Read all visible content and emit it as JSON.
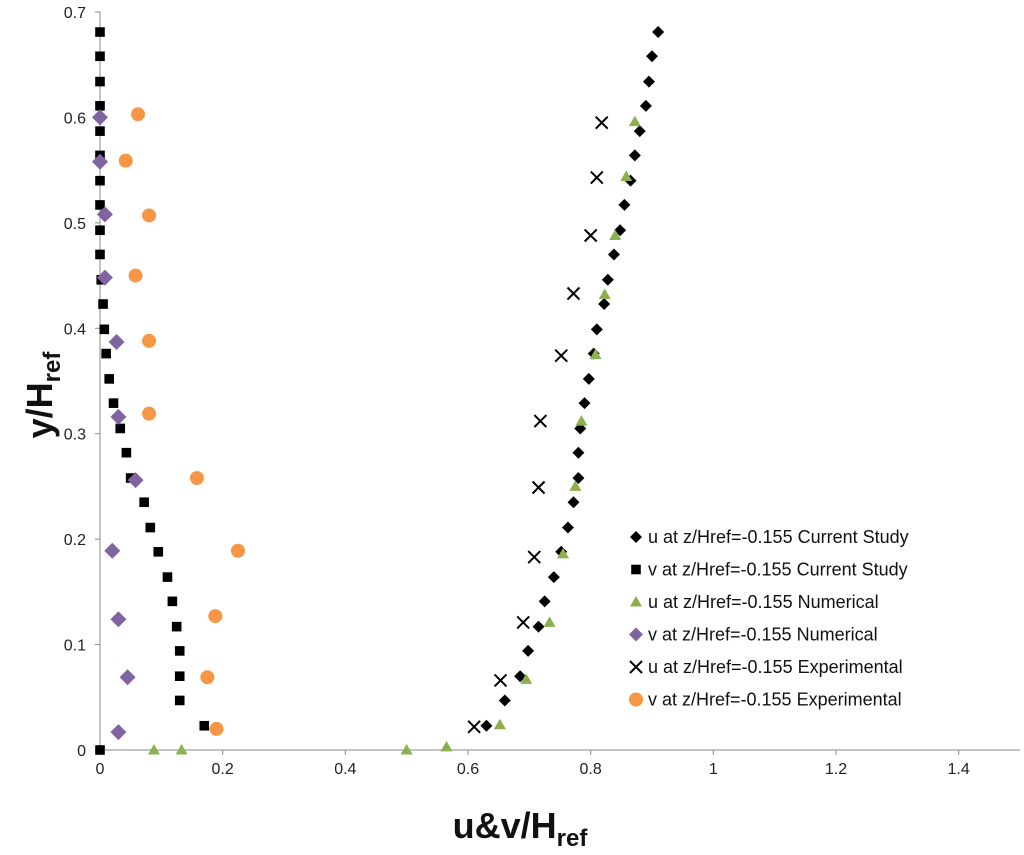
{
  "chart_data": {
    "type": "scatter",
    "title": "",
    "xlabel_main": "u&v/H",
    "xlabel_sub": "ref",
    "ylabel_main": "y/H",
    "ylabel_sub": "ref",
    "xlim": [
      0,
      1.5
    ],
    "ylim": [
      0,
      0.7
    ],
    "x_ticks": [
      0,
      0.2,
      0.4,
      0.6,
      0.8,
      1,
      1.2,
      1.4
    ],
    "x_tick_labels": [
      "0",
      "0.2",
      "0.4",
      "0.6",
      "0.8",
      "1",
      "1.2",
      "1.4"
    ],
    "y_ticks": [
      0,
      0.1,
      0.2,
      0.3,
      0.4,
      0.5,
      0.6,
      0.7
    ],
    "y_tick_labels": [
      "0",
      "0.1",
      "0.2",
      "0.3",
      "0.4",
      "0.5",
      "0.6",
      "0.7"
    ],
    "grid": false,
    "legend_position": "bottom-right",
    "series": [
      {
        "name": "u at z/Href=-0.155 Current Study",
        "marker": "diamond",
        "color": "#000000",
        "points": [
          [
            0.63,
            0.023
          ],
          [
            0.66,
            0.047
          ],
          [
            0.685,
            0.07
          ],
          [
            0.698,
            0.094
          ],
          [
            0.715,
            0.117
          ],
          [
            0.725,
            0.141
          ],
          [
            0.74,
            0.164
          ],
          [
            0.752,
            0.188
          ],
          [
            0.763,
            0.211
          ],
          [
            0.772,
            0.235
          ],
          [
            0.78,
            0.258
          ],
          [
            0.78,
            0.282
          ],
          [
            0.783,
            0.305
          ],
          [
            0.79,
            0.329
          ],
          [
            0.797,
            0.352
          ],
          [
            0.805,
            0.376
          ],
          [
            0.81,
            0.399
          ],
          [
            0.822,
            0.423
          ],
          [
            0.828,
            0.446
          ],
          [
            0.838,
            0.47
          ],
          [
            0.848,
            0.493
          ],
          [
            0.855,
            0.517
          ],
          [
            0.865,
            0.54
          ],
          [
            0.872,
            0.564
          ],
          [
            0.88,
            0.587
          ],
          [
            0.89,
            0.611
          ],
          [
            0.895,
            0.634
          ],
          [
            0.9,
            0.658
          ],
          [
            0.91,
            0.681
          ]
        ]
      },
      {
        "name": "v at z/Href=-0.155 Current Study",
        "marker": "square",
        "color": "#000000",
        "points": [
          [
            0,
            0
          ],
          [
            0.17,
            0.023
          ],
          [
            0.13,
            0.047
          ],
          [
            0.13,
            0.07
          ],
          [
            0.13,
            0.094
          ],
          [
            0.125,
            0.117
          ],
          [
            0.118,
            0.141
          ],
          [
            0.11,
            0.164
          ],
          [
            0.095,
            0.188
          ],
          [
            0.082,
            0.211
          ],
          [
            0.072,
            0.235
          ],
          [
            0.05,
            0.258
          ],
          [
            0.043,
            0.282
          ],
          [
            0.033,
            0.305
          ],
          [
            0.022,
            0.329
          ],
          [
            0.015,
            0.352
          ],
          [
            0.01,
            0.376
          ],
          [
            0.007,
            0.399
          ],
          [
            0.005,
            0.423
          ],
          [
            0.002,
            0.446
          ],
          [
            0,
            0.47
          ],
          [
            0,
            0.493
          ],
          [
            0,
            0.517
          ],
          [
            0,
            0.54
          ],
          [
            0,
            0.564
          ],
          [
            0,
            0.587
          ],
          [
            0,
            0.611
          ],
          [
            0,
            0.634
          ],
          [
            0,
            0.658
          ],
          [
            0,
            0.681
          ]
        ]
      },
      {
        "name": "u at z/Href=-0.155 Numerical",
        "marker": "triangle",
        "color": "#8db04e",
        "points": [
          [
            0.088,
            0
          ],
          [
            0.133,
            0
          ],
          [
            0.5,
            0
          ],
          [
            0.565,
            0.003
          ],
          [
            0.652,
            0.024
          ],
          [
            0.695,
            0.067
          ],
          [
            0.733,
            0.121
          ],
          [
            0.755,
            0.186
          ],
          [
            0.775,
            0.25
          ],
          [
            0.785,
            0.312
          ],
          [
            0.808,
            0.375
          ],
          [
            0.823,
            0.432
          ],
          [
            0.84,
            0.488
          ],
          [
            0.858,
            0.544
          ],
          [
            0.872,
            0.596
          ]
        ]
      },
      {
        "name": "v at z/Href=-0.155 Numerical",
        "marker": "diamond",
        "color": "#8064a2",
        "points": [
          [
            0.03,
            0.017
          ],
          [
            0.045,
            0.069
          ],
          [
            0.03,
            0.124
          ],
          [
            0.02,
            0.189
          ],
          [
            0.058,
            0.256
          ],
          [
            0.03,
            0.316
          ],
          [
            0.027,
            0.387
          ],
          [
            0.008,
            0.448
          ],
          [
            0.008,
            0.508
          ],
          [
            0,
            0.558
          ],
          [
            0,
            0.6
          ]
        ]
      },
      {
        "name": "u at z/Href=-0.155 Experimental",
        "marker": "x",
        "color": "#000000",
        "points": [
          [
            0.61,
            0.022
          ],
          [
            0.653,
            0.066
          ],
          [
            0.69,
            0.121
          ],
          [
            0.708,
            0.183
          ],
          [
            0.715,
            0.249
          ],
          [
            0.718,
            0.312
          ],
          [
            0.752,
            0.374
          ],
          [
            0.772,
            0.433
          ],
          [
            0.8,
            0.488
          ],
          [
            0.81,
            0.543
          ],
          [
            0.818,
            0.595
          ]
        ]
      },
      {
        "name": "v at z/Href=-0.155 Experimental",
        "marker": "circle",
        "color": "#f79646",
        "points": [
          [
            0.19,
            0.02
          ],
          [
            0.175,
            0.069
          ],
          [
            0.188,
            0.127
          ],
          [
            0.225,
            0.189
          ],
          [
            0.158,
            0.258
          ],
          [
            0.08,
            0.319
          ],
          [
            0.08,
            0.388
          ],
          [
            0.058,
            0.45
          ],
          [
            0.08,
            0.507
          ],
          [
            0.042,
            0.559
          ],
          [
            0.062,
            0.603
          ]
        ]
      }
    ]
  }
}
